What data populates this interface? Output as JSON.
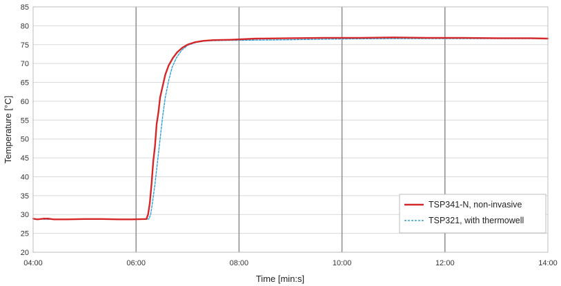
{
  "chart_data": {
    "type": "line",
    "xlabel": "Time [min:s]",
    "ylabel": "Temperature [°C]",
    "x_ticks": [
      "04:00",
      "06:00",
      "08:00",
      "10:00",
      "12:00",
      "14:00"
    ],
    "x_ticks_seconds": [
      240,
      360,
      480,
      600,
      720,
      840
    ],
    "xlim_seconds": [
      240,
      840
    ],
    "ylim": [
      20,
      85
    ],
    "y_ticks": [
      20,
      25,
      30,
      35,
      40,
      45,
      50,
      55,
      60,
      65,
      70,
      75,
      80,
      85
    ],
    "grid": {
      "horizontal": true,
      "vertical": true
    },
    "legend_position": "bottom-right",
    "series": [
      {
        "name": "TSP341-N, non-invasive",
        "color": "#d62728",
        "style": "solid",
        "points": [
          [
            240,
            28.9
          ],
          [
            245,
            28.7
          ],
          [
            252,
            28.9
          ],
          [
            258,
            28.9
          ],
          [
            264,
            28.7
          ],
          [
            280,
            28.7
          ],
          [
            300,
            28.8
          ],
          [
            320,
            28.8
          ],
          [
            340,
            28.7
          ],
          [
            355,
            28.7
          ],
          [
            372,
            28.8
          ],
          [
            374,
            30
          ],
          [
            376,
            33
          ],
          [
            378,
            38
          ],
          [
            380,
            44
          ],
          [
            382,
            48
          ],
          [
            384,
            54
          ],
          [
            386,
            57
          ],
          [
            388,
            61
          ],
          [
            391,
            64
          ],
          [
            394,
            67
          ],
          [
            398,
            69.5
          ],
          [
            403,
            71.5
          ],
          [
            408,
            73
          ],
          [
            414,
            74.2
          ],
          [
            420,
            75
          ],
          [
            428,
            75.6
          ],
          [
            438,
            76
          ],
          [
            450,
            76.2
          ],
          [
            470,
            76.3
          ],
          [
            500,
            76.6
          ],
          [
            540,
            76.7
          ],
          [
            580,
            76.8
          ],
          [
            620,
            76.8
          ],
          [
            660,
            76.9
          ],
          [
            700,
            76.8
          ],
          [
            740,
            76.8
          ],
          [
            780,
            76.7
          ],
          [
            820,
            76.7
          ],
          [
            840,
            76.6
          ]
        ]
      },
      {
        "name": "TSP321, with thermowell",
        "color": "#2e9fd9",
        "style": "dashed",
        "points": [
          [
            240,
            28.8
          ],
          [
            260,
            28.7
          ],
          [
            300,
            28.8
          ],
          [
            340,
            28.7
          ],
          [
            375,
            28.8
          ],
          [
            377,
            30
          ],
          [
            379,
            33
          ],
          [
            382,
            38
          ],
          [
            385,
            44
          ],
          [
            388,
            50
          ],
          [
            391,
            56
          ],
          [
            394,
            61
          ],
          [
            398,
            65.5
          ],
          [
            402,
            69
          ],
          [
            407,
            71.5
          ],
          [
            413,
            73.5
          ],
          [
            420,
            74.8
          ],
          [
            430,
            75.6
          ],
          [
            442,
            76
          ],
          [
            460,
            76.1
          ],
          [
            500,
            76.2
          ],
          [
            540,
            76.3
          ],
          [
            600,
            76.5
          ],
          [
            660,
            76.6
          ],
          [
            720,
            76.6
          ],
          [
            780,
            76.6
          ],
          [
            840,
            76.6
          ]
        ]
      }
    ]
  }
}
